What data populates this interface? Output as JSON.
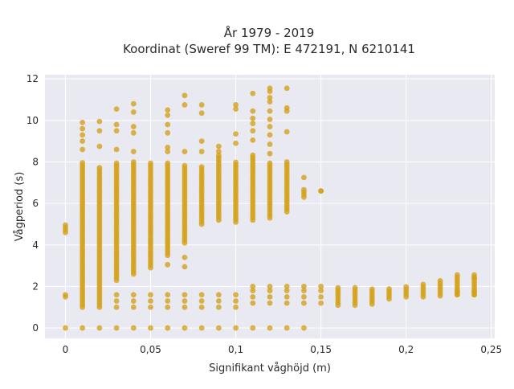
{
  "chart_data": {
    "type": "scatter",
    "title_line1": "År 1979 - 2019",
    "title_line2": "Koordinat (Sweref 99 TM): E 472191, N 6210141",
    "xlabel": "Signifikant våghöjd (m)",
    "ylabel": "Vågperiod (s)",
    "xlim": [
      -0.012,
      0.252
    ],
    "ylim": [
      -0.5,
      12.2
    ],
    "x_ticks": [
      {
        "value": 0,
        "label": "0"
      },
      {
        "value": 0.05,
        "label": "0,05"
      },
      {
        "value": 0.1,
        "label": "0,1"
      },
      {
        "value": 0.15,
        "label": "0,15"
      },
      {
        "value": 0.2,
        "label": "0,2"
      },
      {
        "value": 0.25,
        "label": "0,25"
      }
    ],
    "y_ticks": [
      {
        "value": 0,
        "label": "0"
      },
      {
        "value": 2,
        "label": "2"
      },
      {
        "value": 4,
        "label": "4"
      },
      {
        "value": 6,
        "label": "6"
      },
      {
        "value": 8,
        "label": "8"
      },
      {
        "value": 10,
        "label": "10"
      },
      {
        "value": 12,
        "label": "12"
      }
    ],
    "grid": true,
    "marker_color": "#d4a017",
    "background_color": "#e9e9f1",
    "columns": [
      {
        "x": 0.0,
        "y_min": 4.6,
        "y_max": 5.05,
        "extra": [
          1.5,
          1.6,
          0.0
        ]
      },
      {
        "x": 0.01,
        "y_min": 1.0,
        "y_max": 8.0,
        "extra": [
          9.9,
          9.6,
          9.3,
          9.0,
          8.6,
          0.0
        ]
      },
      {
        "x": 0.02,
        "y_min": 1.0,
        "y_max": 7.8,
        "extra": [
          9.95,
          9.5,
          8.75,
          0.0
        ]
      },
      {
        "x": 0.03,
        "y_min": 2.3,
        "y_max": 8.0,
        "extra": [
          10.55,
          9.8,
          9.5,
          8.6,
          1.0,
          1.3,
          1.6,
          0.0
        ]
      },
      {
        "x": 0.04,
        "y_min": 2.6,
        "y_max": 8.0,
        "extra": [
          10.8,
          10.4,
          9.7,
          9.4,
          8.5,
          1.0,
          1.3,
          1.6,
          0.0
        ]
      },
      {
        "x": 0.05,
        "y_min": 2.9,
        "y_max": 8.0,
        "extra": [
          1.0,
          1.3,
          1.6,
          0.0
        ]
      },
      {
        "x": 0.06,
        "y_min": 3.5,
        "y_max": 8.0,
        "extra": [
          10.5,
          10.25,
          9.8,
          9.4,
          8.7,
          8.5,
          3.05,
          1.0,
          1.3,
          1.6,
          0.0
        ]
      },
      {
        "x": 0.07,
        "y_min": 4.1,
        "y_max": 7.9,
        "extra": [
          11.2,
          10.75,
          8.5,
          3.4,
          2.95,
          1.0,
          1.3,
          1.6,
          0.0
        ]
      },
      {
        "x": 0.08,
        "y_min": 5.0,
        "y_max": 7.8,
        "extra": [
          10.75,
          10.35,
          9.0,
          8.5,
          1.0,
          1.3,
          1.6,
          0.0
        ]
      },
      {
        "x": 0.09,
        "y_min": 5.2,
        "y_max": 8.4,
        "extra": [
          8.75,
          8.5,
          1.0,
          1.3,
          1.6,
          0.0
        ]
      },
      {
        "x": 0.1,
        "y_min": 5.1,
        "y_max": 8.0,
        "extra": [
          10.75,
          10.55,
          9.35,
          8.9,
          1.0,
          1.3,
          1.6,
          0.0
        ]
      },
      {
        "x": 0.11,
        "y_min": 5.2,
        "y_max": 8.4,
        "extra": [
          11.3,
          10.45,
          10.1,
          9.85,
          9.5,
          9.05,
          2.0,
          1.8,
          1.5,
          1.2,
          0.0
        ]
      },
      {
        "x": 0.12,
        "y_min": 5.3,
        "y_max": 8.0,
        "extra": [
          11.55,
          11.4,
          11.1,
          10.9,
          10.45,
          10.05,
          9.7,
          9.3,
          8.85,
          8.4,
          2.0,
          1.8,
          1.5,
          1.2,
          0.0
        ]
      },
      {
        "x": 0.13,
        "y_min": 5.6,
        "y_max": 8.0,
        "extra": [
          11.55,
          10.6,
          10.45,
          9.45,
          2.0,
          1.8,
          1.5,
          1.2,
          0.0
        ]
      },
      {
        "x": 0.14,
        "y_min": 6.3,
        "y_max": 6.7,
        "extra": [
          7.25,
          2.0,
          1.8,
          1.5,
          1.2,
          0.0
        ]
      },
      {
        "x": 0.15,
        "y_min": 6.6,
        "y_max": 6.6,
        "extra": [
          2.0,
          1.8,
          1.5,
          1.2
        ]
      },
      {
        "x": 0.16,
        "y_min": 1.1,
        "y_max": 2.0,
        "extra": []
      },
      {
        "x": 0.17,
        "y_min": 1.1,
        "y_max": 2.05,
        "extra": []
      },
      {
        "x": 0.18,
        "y_min": 1.15,
        "y_max": 1.95,
        "extra": []
      },
      {
        "x": 0.19,
        "y_min": 1.4,
        "y_max": 1.9,
        "extra": []
      },
      {
        "x": 0.2,
        "y_min": 1.5,
        "y_max": 2.0,
        "extra": []
      },
      {
        "x": 0.21,
        "y_min": 1.5,
        "y_max": 2.2,
        "extra": []
      },
      {
        "x": 0.22,
        "y_min": 1.55,
        "y_max": 2.3,
        "extra": []
      },
      {
        "x": 0.23,
        "y_min": 1.6,
        "y_max": 2.6,
        "extra": [
          1.6,
          1.75
        ]
      },
      {
        "x": 0.24,
        "y_min": 1.6,
        "y_max": 2.6,
        "extra": [
          1.6,
          1.75,
          2.4
        ]
      }
    ]
  }
}
